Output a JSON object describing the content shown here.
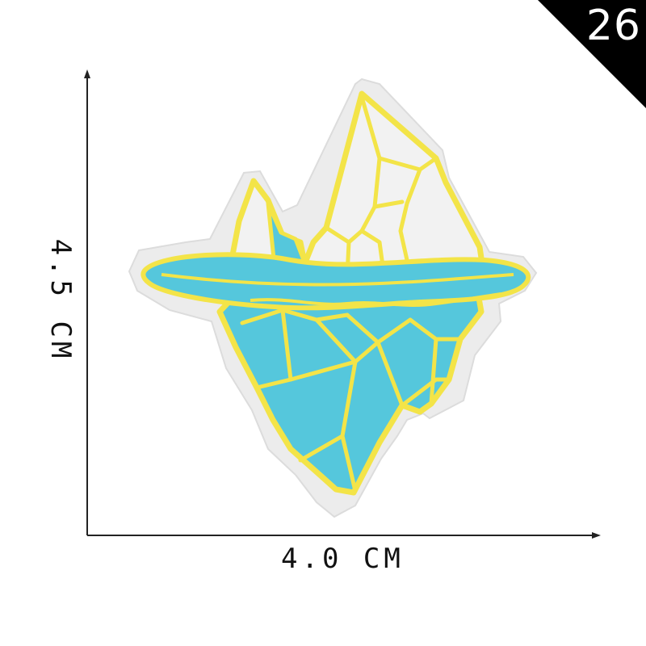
{
  "badge": {
    "number": "26",
    "background_color": "#000000",
    "text_color": "#ffffff"
  },
  "dimensions": {
    "width_label": "4.0 CM",
    "height_label": "4.5 CM"
  },
  "product": {
    "name": "iceberg-embroidered-patch",
    "colors": {
      "outline": "#f3e448",
      "ice_blue": "#55c7dc",
      "snow_white": "#f2f2f2",
      "backing": "#eeeeee"
    }
  }
}
